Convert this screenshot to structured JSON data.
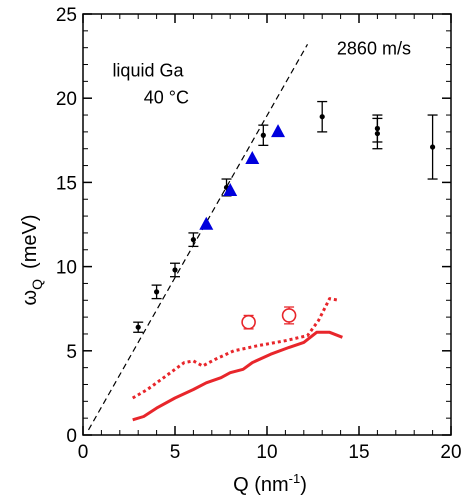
{
  "chart_data": {
    "type": "scatter",
    "title": "",
    "xlabel": "Q  (nm",
    "xlabel_sup": "-1",
    "xlabel_close": ")",
    "ylabel": "ω",
    "ylabel_sub": "Q",
    "ylabel_units": "(meV)",
    "xlim": [
      0,
      20
    ],
    "ylim": [
      0,
      25
    ],
    "xticks": [
      0,
      5,
      10,
      15,
      20
    ],
    "yticks": [
      0,
      5,
      10,
      15,
      20,
      25
    ],
    "xtick_labels": [
      "0",
      "5",
      "10",
      "15",
      "20"
    ],
    "ytick_labels": [
      "0",
      "5",
      "10",
      "15",
      "20",
      "25"
    ],
    "grid": false,
    "annotations": [
      {
        "text": "liquid Ga",
        "x": 1.6,
        "y": 21.3
      },
      {
        "text": "40 °C",
        "x": 3.3,
        "y": 19.7
      },
      {
        "text": "2860 m/s",
        "x": 13.8,
        "y": 22.6
      }
    ],
    "series": [
      {
        "style": "black-circle-errorbar",
        "color": "#000000",
        "x": [
          3.0,
          4.0,
          5.0,
          6.0,
          7.8,
          9.8,
          13.0,
          16.0,
          16.0,
          19.0
        ],
        "y": [
          6.4,
          8.5,
          9.8,
          11.6,
          14.7,
          17.8,
          18.9,
          18.2,
          17.9,
          17.1
        ],
        "err": [
          0.3,
          0.4,
          0.4,
          0.4,
          0.5,
          0.6,
          0.9,
          0.8,
          0.9,
          1.9
        ]
      },
      {
        "style": "blue-triangle",
        "color": "#0000dd",
        "x": [
          6.7,
          8.0,
          9.2,
          10.6
        ],
        "y": [
          12.5,
          14.5,
          16.4,
          18.0
        ]
      },
      {
        "style": "red-open-circle-errorbar",
        "color": "#e8262b",
        "x": [
          9.0,
          11.2
        ],
        "y": [
          6.7,
          7.1
        ],
        "err": [
          0.4,
          0.5
        ]
      },
      {
        "style": "red-solid-line",
        "color": "#e8262b",
        "x": [
          2.7,
          3.3,
          4.0,
          5.0,
          6.0,
          6.7,
          7.5,
          8.0,
          8.7,
          9.2,
          10.2,
          11.2,
          12.0,
          12.7,
          13.4,
          14.1
        ],
        "y": [
          0.9,
          1.1,
          1.6,
          2.2,
          2.7,
          3.1,
          3.4,
          3.7,
          3.9,
          4.3,
          4.8,
          5.2,
          5.5,
          6.1,
          6.1,
          5.8
        ]
      },
      {
        "style": "red-dotted-line",
        "color": "#e8262b",
        "x": [
          2.7,
          3.5,
          4.5,
          5.5,
          6.0,
          6.5,
          7.2,
          8.2,
          9.5,
          11.0,
          12.2,
          12.8,
          13.4,
          13.9
        ],
        "y": [
          2.2,
          2.7,
          3.5,
          4.3,
          4.4,
          4.1,
          4.5,
          5.0,
          5.3,
          5.6,
          5.9,
          6.8,
          8.1,
          8.0
        ]
      },
      {
        "style": "black-dashed-line",
        "color": "#000000",
        "x": [
          0.3,
          12.2
        ],
        "y": [
          0.3,
          23.2
        ]
      }
    ]
  }
}
